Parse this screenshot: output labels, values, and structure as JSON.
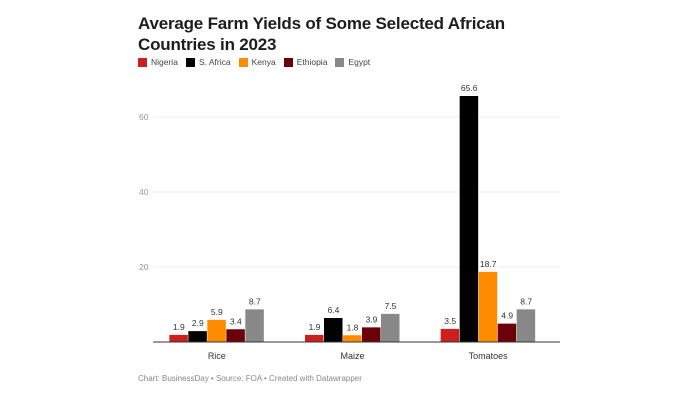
{
  "chart_data": {
    "type": "bar",
    "title": "Average Farm Yields of Some Selected African Countries in 2023",
    "categories": [
      "Rice",
      "Maize",
      "Tomatoes"
    ],
    "series": [
      {
        "name": "Nigeria",
        "color": "#cc1f1f",
        "values": [
          1.9,
          1.9,
          3.5
        ]
      },
      {
        "name": "S. Africa",
        "color": "#000000",
        "values": [
          2.9,
          6.4,
          65.6
        ]
      },
      {
        "name": "Kenya",
        "color": "#ff8c00",
        "values": [
          5.9,
          1.8,
          18.7
        ]
      },
      {
        "name": "Ethiopia",
        "color": "#6b0009",
        "values": [
          3.4,
          3.9,
          4.9
        ]
      },
      {
        "name": "Egypt",
        "color": "#888888",
        "values": [
          8.7,
          7.5,
          8.7
        ]
      }
    ],
    "yticks": [
      20,
      40,
      60
    ],
    "ylim": [
      0,
      70
    ],
    "grid": true,
    "legend_position": "top-left",
    "footer": "Chart: BusinessDay • Source: FOA • Created with Datawrapper"
  }
}
